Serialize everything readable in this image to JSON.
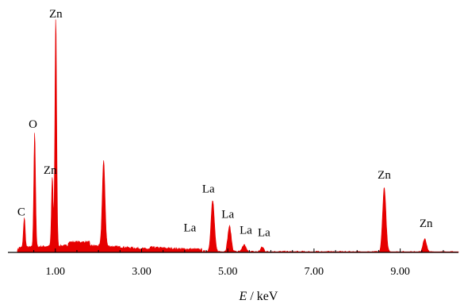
{
  "chart_data": {
    "type": "area",
    "title": "",
    "xlabel_var": "E",
    "xlabel_rest": " / keV",
    "ylabel": "",
    "xlim": [
      -0.1,
      10.35
    ],
    "ylim": [
      0,
      100
    ],
    "grid": false,
    "legend": "none",
    "fill_color": "#e60000",
    "x_ticks": [
      {
        "value": 1.0,
        "label": "1.00"
      },
      {
        "value": 3.0,
        "label": "3.00"
      },
      {
        "value": 5.0,
        "label": "5.00"
      },
      {
        "value": 7.0,
        "label": "7.00"
      },
      {
        "value": 9.0,
        "label": "9.00"
      }
    ],
    "peaks": [
      {
        "element": "C",
        "energy": 0.28,
        "height": 13
      },
      {
        "element": "O",
        "energy": 0.52,
        "height": 50
      },
      {
        "element": "Zn",
        "energy": 0.93,
        "height": 30
      },
      {
        "element": "Zn",
        "energy": 1.01,
        "height": 100
      },
      {
        "element": "",
        "energy": 2.12,
        "height": 37
      },
      {
        "element": "La",
        "energy": 4.65,
        "height": 22
      },
      {
        "element": "La",
        "energy": 5.04,
        "height": 11
      },
      {
        "element": "La",
        "energy": 5.38,
        "height": 3
      },
      {
        "element": "La",
        "energy": 5.8,
        "height": 2
      },
      {
        "element": "Zn",
        "energy": 8.63,
        "height": 28
      },
      {
        "element": "Zn",
        "energy": 9.57,
        "height": 6
      }
    ],
    "peak_labels": [
      {
        "text": "Zn",
        "energy": 1.01,
        "above": 100
      },
      {
        "text": "O",
        "energy": 0.48,
        "above": 52
      },
      {
        "text": "Zn",
        "energy": 0.88,
        "above": 32
      },
      {
        "text": "C",
        "energy": 0.21,
        "above": 14
      },
      {
        "text": "La",
        "energy": 4.55,
        "above": 24
      },
      {
        "text": "La",
        "energy": 5.0,
        "above": 13
      },
      {
        "text": "La",
        "energy": 4.12,
        "above": 7
      },
      {
        "text": "La",
        "energy": 5.42,
        "above": 6
      },
      {
        "text": "La",
        "energy": 5.84,
        "above": 5
      },
      {
        "text": "Zn",
        "energy": 8.63,
        "above": 30
      },
      {
        "text": "Zn",
        "energy": 9.6,
        "above": 9
      }
    ]
  }
}
